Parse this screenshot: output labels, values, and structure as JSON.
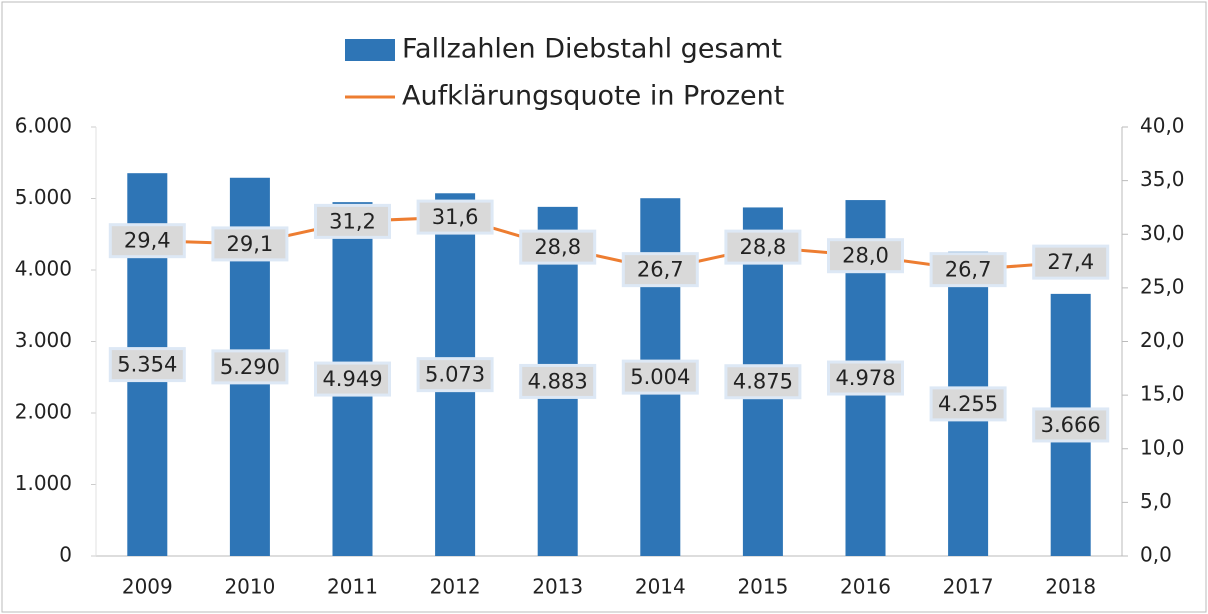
{
  "chart_data": {
    "type": "bar",
    "categories": [
      "2009",
      "2010",
      "2011",
      "2012",
      "2013",
      "2014",
      "2015",
      "2016",
      "2017",
      "2018"
    ],
    "series": [
      {
        "name": "Fallzahlen Diebstahl gesamt",
        "type": "bar",
        "color": "#2e75b6",
        "values": [
          5354,
          5290,
          4949,
          5073,
          4883,
          5004,
          4875,
          4978,
          4255,
          3666
        ],
        "value_labels": [
          "5.354",
          "5.290",
          "4.949",
          "5.073",
          "4.883",
          "5.004",
          "4.875",
          "4.978",
          "4.255",
          "3.666"
        ]
      },
      {
        "name": "Aufklärungsquote in Prozent",
        "type": "line",
        "axis": "y2",
        "color": "#ed7d31",
        "values": [
          29.4,
          29.1,
          31.2,
          31.6,
          28.8,
          26.7,
          28.8,
          28.0,
          26.7,
          27.4
        ],
        "value_labels": [
          "29,4",
          "29,1",
          "31,2",
          "31,6",
          "28,8",
          "26,7",
          "28,8",
          "28,0",
          "26,7",
          "27,4"
        ]
      }
    ],
    "ylim": [
      0,
      6000
    ],
    "yticks": [
      0,
      {
        "value": 1000,
        "label": "1.000"
      },
      {
        "value": 2000,
        "label": "2.000"
      },
      {
        "value": 3000,
        "label": "3.000"
      },
      {
        "value": 4000,
        "label": "4.000"
      },
      {
        "value": 5000,
        "label": "5.000"
      },
      {
        "value": 6000,
        "label": "6.000"
      }
    ],
    "y2lim": [
      0,
      40
    ],
    "y2ticks": [
      {
        "value": 0,
        "label": "0,0"
      },
      {
        "value": 5,
        "label": "5,0"
      },
      {
        "value": 10,
        "label": "10,0"
      },
      {
        "value": 15,
        "label": "15,0"
      },
      {
        "value": 20,
        "label": "20,0"
      },
      {
        "value": 25,
        "label": "25,0"
      },
      {
        "value": 30,
        "label": "30,0"
      },
      {
        "value": 35,
        "label": "35,0"
      },
      {
        "value": 40,
        "label": "40,0"
      }
    ],
    "legend": "top"
  }
}
